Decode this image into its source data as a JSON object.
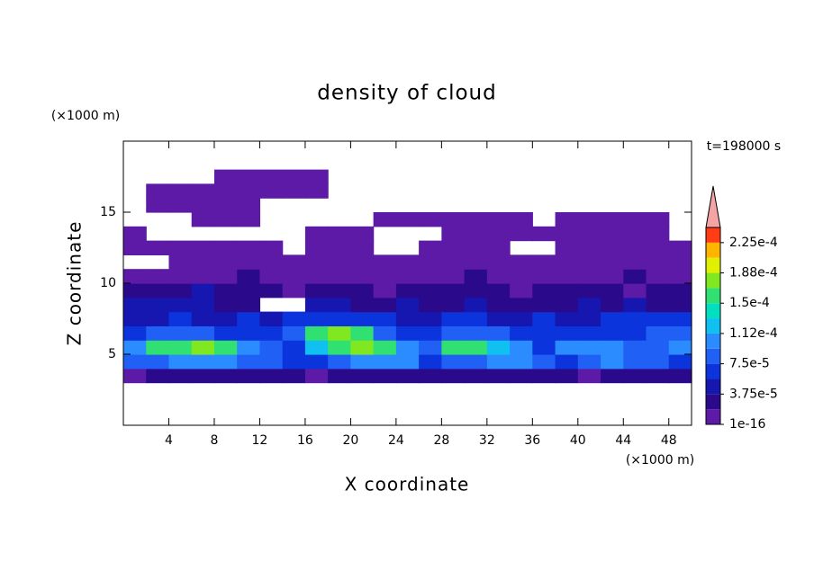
{
  "chart_data": {
    "type": "contour",
    "title": "density of cloud",
    "x_label": "X coordinate",
    "y_label": "Z coordinate",
    "x_unit": "(×1000 m)",
    "y_unit": "(×1000 m)",
    "annotation": "t=198000 s",
    "xlim": [
      0,
      50
    ],
    "ylim": [
      0,
      20
    ],
    "xticks": [
      4,
      8,
      12,
      16,
      20,
      24,
      28,
      32,
      36,
      40,
      44,
      48
    ],
    "yticks": [
      5,
      10,
      15
    ],
    "x": [
      1,
      3,
      5,
      7,
      9,
      11,
      13,
      15,
      17,
      19,
      21,
      23,
      25,
      27,
      29,
      31,
      33,
      35,
      37,
      39,
      41,
      43,
      45,
      47,
      49
    ],
    "y": [
      3.5,
      4.5,
      5.5,
      6.5,
      7.5,
      8.5,
      9.5,
      10.5,
      11.5,
      12.5,
      13.5,
      14.5,
      15.5,
      16.5,
      17.5
    ],
    "z": [
      [
        1e-05,
        3e-05,
        3e-05,
        3e-05,
        3e-05,
        3e-05,
        3e-05,
        3e-05,
        1e-05,
        3e-05,
        3e-05,
        3e-05,
        3e-05,
        3e-05,
        3e-05,
        3e-05,
        3e-05,
        3e-05,
        3e-05,
        3e-05,
        1e-05,
        3e-05,
        3e-05,
        3e-05,
        3e-05
      ],
      [
        9e-05,
        9e-05,
        0.00011,
        0.00011,
        0.00011,
        9e-05,
        9e-05,
        7e-05,
        7e-05,
        9e-05,
        0.00011,
        0.00011,
        0.00011,
        7e-05,
        9e-05,
        9e-05,
        0.00011,
        0.00011,
        9e-05,
        7e-05,
        9e-05,
        0.00011,
        9e-05,
        9e-05,
        7e-05
      ],
      [
        0.00011,
        0.00015,
        0.00015,
        0.00017,
        0.00015,
        0.00011,
        9e-05,
        7e-05,
        0.00013,
        0.00015,
        0.00017,
        0.00015,
        0.00011,
        9e-05,
        0.00015,
        0.00015,
        0.00013,
        0.00011,
        7e-05,
        0.00011,
        0.00011,
        0.00011,
        9e-05,
        9e-05,
        0.00011
      ],
      [
        7e-05,
        9e-05,
        9e-05,
        9e-05,
        7e-05,
        7e-05,
        7e-05,
        9e-05,
        0.00015,
        0.00017,
        0.00015,
        9e-05,
        7e-05,
        7e-05,
        9e-05,
        9e-05,
        9e-05,
        7e-05,
        7e-05,
        7e-05,
        7e-05,
        7e-05,
        7e-05,
        9e-05,
        9e-05
      ],
      [
        5e-05,
        5e-05,
        7e-05,
        5e-05,
        5e-05,
        7e-05,
        5e-05,
        7e-05,
        7e-05,
        7e-05,
        7e-05,
        7e-05,
        5e-05,
        5e-05,
        7e-05,
        7e-05,
        5e-05,
        5e-05,
        7e-05,
        5e-05,
        5e-05,
        7e-05,
        7e-05,
        7e-05,
        7e-05
      ],
      [
        5e-05,
        5e-05,
        5e-05,
        5e-05,
        3e-05,
        3e-05,
        null,
        null,
        5e-05,
        5e-05,
        3e-05,
        3e-05,
        5e-05,
        3e-05,
        3e-05,
        5e-05,
        3e-05,
        3e-05,
        3e-05,
        3e-05,
        5e-05,
        3e-05,
        5e-05,
        3e-05,
        3e-05
      ],
      [
        3e-05,
        3e-05,
        3e-05,
        5e-05,
        3e-05,
        3e-05,
        3e-05,
        1e-05,
        3e-05,
        3e-05,
        3e-05,
        1e-05,
        3e-05,
        3e-05,
        3e-05,
        3e-05,
        3e-05,
        1e-05,
        3e-05,
        3e-05,
        3e-05,
        3e-05,
        1e-05,
        3e-05,
        3e-05
      ],
      [
        1e-05,
        1e-05,
        1e-05,
        1e-05,
        1e-05,
        3e-05,
        1e-05,
        1e-05,
        1e-05,
        1e-05,
        1e-05,
        1e-05,
        1e-05,
        1e-05,
        1e-05,
        3e-05,
        1e-05,
        1e-05,
        1e-05,
        1e-05,
        1e-05,
        1e-05,
        3e-05,
        1e-05,
        1e-05
      ],
      [
        null,
        null,
        1e-05,
        1e-05,
        1e-05,
        1e-05,
        1e-05,
        1e-05,
        1e-05,
        1e-05,
        1e-05,
        1e-05,
        1e-05,
        1e-05,
        1e-05,
        1e-05,
        1e-05,
        1e-05,
        1e-05,
        1e-05,
        1e-05,
        1e-05,
        1e-05,
        1e-05,
        1e-05
      ],
      [
        1e-05,
        1e-05,
        1e-05,
        1e-05,
        1e-05,
        1e-05,
        1e-05,
        null,
        1e-05,
        1e-05,
        1e-05,
        null,
        null,
        1e-05,
        1e-05,
        1e-05,
        1e-05,
        null,
        null,
        1e-05,
        1e-05,
        1e-05,
        1e-05,
        1e-05,
        1e-05
      ],
      [
        1e-05,
        null,
        null,
        null,
        null,
        null,
        null,
        null,
        1e-05,
        1e-05,
        1e-05,
        null,
        null,
        null,
        1e-05,
        1e-05,
        1e-05,
        1e-05,
        1e-05,
        1e-05,
        1e-05,
        1e-05,
        1e-05,
        1e-05,
        null
      ],
      [
        null,
        null,
        null,
        1e-05,
        1e-05,
        1e-05,
        null,
        null,
        null,
        null,
        null,
        1e-05,
        1e-05,
        1e-05,
        1e-05,
        1e-05,
        1e-05,
        1e-05,
        null,
        1e-05,
        1e-05,
        1e-05,
        1e-05,
        1e-05,
        null
      ],
      [
        null,
        1e-05,
        1e-05,
        1e-05,
        1e-05,
        1e-05,
        null,
        null,
        null,
        null,
        null,
        null,
        null,
        null,
        null,
        null,
        null,
        null,
        null,
        null,
        null,
        null,
        null,
        null,
        null
      ],
      [
        null,
        1e-05,
        1e-05,
        1e-05,
        1e-05,
        1e-05,
        1e-05,
        1e-05,
        1e-05,
        null,
        null,
        null,
        null,
        null,
        null,
        null,
        null,
        null,
        null,
        null,
        null,
        null,
        null,
        null,
        null
      ],
      [
        null,
        null,
        null,
        null,
        1e-05,
        1e-05,
        1e-05,
        1e-05,
        1e-05,
        null,
        null,
        null,
        null,
        null,
        null,
        null,
        null,
        null,
        null,
        null,
        null,
        null,
        null,
        null,
        null
      ]
    ],
    "levels": [
      1e-16,
      1.875e-05,
      3.75e-05,
      5.625e-05,
      7.5e-05,
      9.375e-05,
      0.0001125,
      0.00013125,
      0.00015,
      0.00016875,
      0.0001875,
      0.00020625,
      0.000225,
      0.00024375
    ],
    "colors": [
      "#5c1aa6",
      "#2a0a8a",
      "#1616b0",
      "#0c34dc",
      "#2060f5",
      "#2a8cff",
      "#10c0f0",
      "#00e0c0",
      "#30e070",
      "#80e820",
      "#e0f000",
      "#ffb400",
      "#ff3c14"
    ],
    "extend_color": "#f4a4a4",
    "colorbar_ticks": [
      1e-16,
      {
        "value": 3.75e-05,
        "label": "3.75e-5"
      },
      {
        "value": 7.5e-05,
        "label": "7.5e-5"
      },
      {
        "value": 0.0001125,
        "label": "1.12e-4"
      },
      {
        "value": 0.00015,
        "label": "1.5e-4"
      },
      {
        "value": 0.0001875,
        "label": "1.88e-4"
      },
      {
        "value": 0.000225,
        "label": "2.25e-4"
      }
    ]
  }
}
